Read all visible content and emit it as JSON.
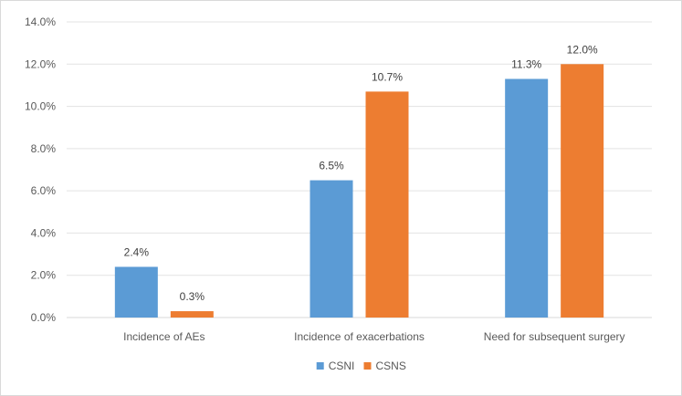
{
  "chart_data": {
    "type": "bar",
    "title": "",
    "xlabel": "",
    "ylabel": "",
    "categories": [
      "Incidence of AEs",
      "Incidence of exacerbations",
      "Need for subsequent surgery"
    ],
    "series": [
      {
        "name": "CSNI",
        "values": [
          2.4,
          6.5,
          11.3
        ],
        "labels": [
          "2.4%",
          "6.5%",
          "11.3%"
        ],
        "color": "#5B9BD5"
      },
      {
        "name": "CSNS",
        "values": [
          0.3,
          10.7,
          12.0
        ],
        "labels": [
          "0.3%",
          "10.7%",
          "12.0%"
        ],
        "color": "#ED7D31"
      }
    ],
    "ylim": [
      0,
      14
    ],
    "yticks": [
      "0.0%",
      "2.0%",
      "4.0%",
      "6.0%",
      "8.0%",
      "10.0%",
      "12.0%",
      "14.0%"
    ],
    "grid": true,
    "legend_position": "bottom"
  }
}
